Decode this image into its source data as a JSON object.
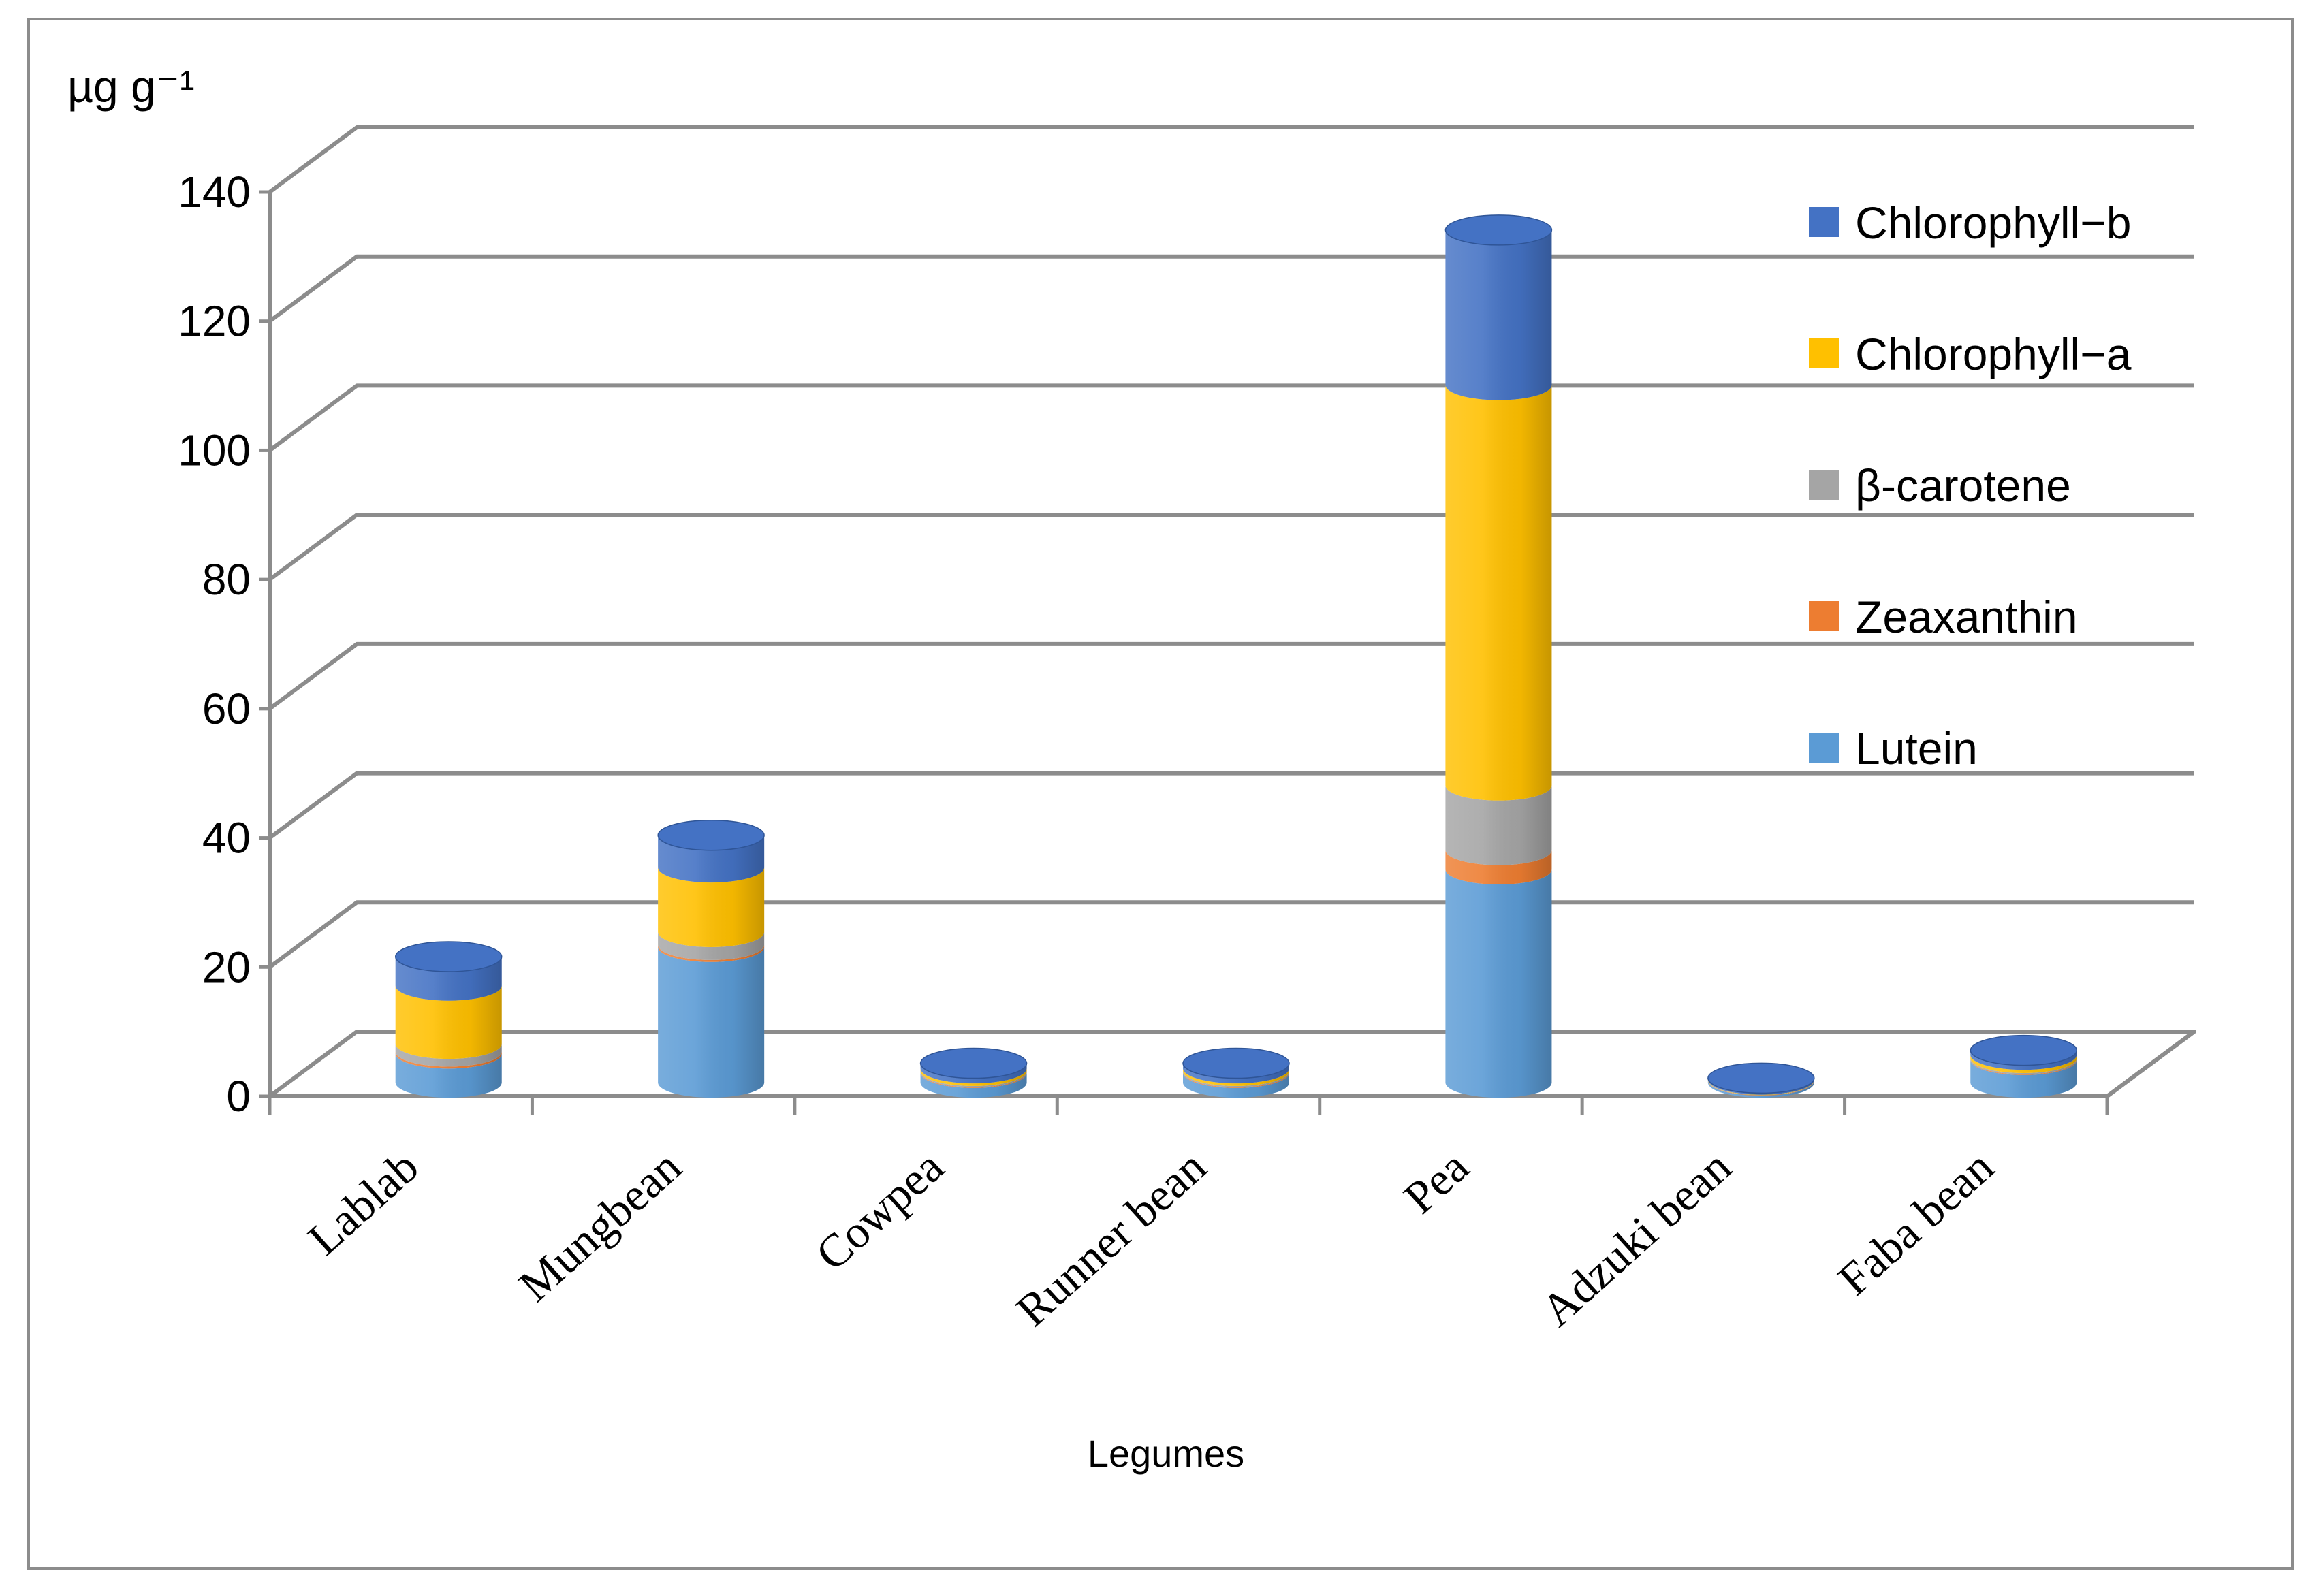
{
  "chart_data": {
    "type": "bar",
    "subtype": "stacked-3d-cylinder",
    "title": "",
    "ylabel": "µg g⁻¹",
    "xlabel": "Legumes",
    "ylim": [
      0,
      140
    ],
    "yticks": [
      0,
      20,
      40,
      60,
      80,
      100,
      120,
      140
    ],
    "grid": true,
    "legend_position": "right",
    "categories": [
      "Lablab",
      "Mungbean",
      "Cowpea",
      "Runner bean",
      "Pea",
      "Adzuki bean",
      "Faba bean"
    ],
    "series": [
      {
        "name": "Lutein",
        "color": "#5b9bd5",
        "values": [
          4.5,
          21,
          1.5,
          1.5,
          33,
          0.3,
          3.5
        ]
      },
      {
        "name": "Zeaxanthin",
        "color": "#ed7d31",
        "values": [
          0.3,
          0.3,
          0.1,
          0.1,
          3,
          0.05,
          0.1
        ]
      },
      {
        "name": "β-carotene",
        "color": "#a5a5a5",
        "values": [
          1.2,
          2,
          0.2,
          0.2,
          10,
          0.05,
          0.2
        ]
      },
      {
        "name": "Chlorophyll−a",
        "color": "#ffc000",
        "values": [
          9,
          10,
          0.4,
          0.4,
          62,
          0.05,
          0.5
        ]
      },
      {
        "name": "Chlorophyll−b",
        "color": "#4472c4",
        "values": [
          4.5,
          5,
          0.8,
          0.8,
          24,
          0.25,
          0.7
        ]
      }
    ]
  }
}
